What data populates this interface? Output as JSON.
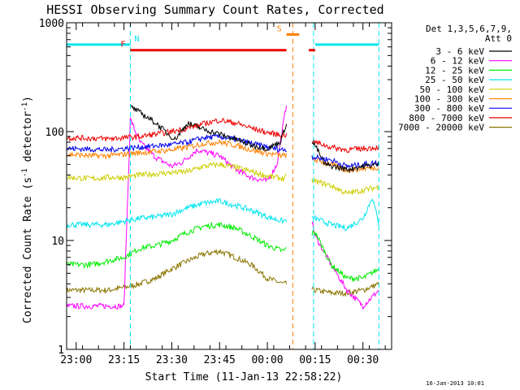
{
  "chart_data": {
    "type": "line",
    "title": "HESSI Observing Summary Count Rates, Corrected",
    "ylabel": "Corrected Count Rate (s",
    "ylabel_sup": "-1",
    "ylabel_tail": " detector",
    "ylabel_end": ")",
    "xlabel": "Start Time (11-Jan-13 22:58:22)",
    "footer_date": "16-Jan-2013 10:01",
    "y_scale": "log",
    "ylim": [
      1,
      1000
    ],
    "y_ticks": [
      {
        "value": 1,
        "label": "1"
      },
      {
        "value": 10,
        "label": "10"
      },
      {
        "value": 100,
        "label": "100"
      },
      {
        "value": 1000,
        "label": "1000"
      }
    ],
    "x_unit": "minutes after 23:00",
    "xlim": [
      -3,
      99
    ],
    "x_ticks": [
      {
        "value": 0,
        "label": "23:00"
      },
      {
        "value": 15,
        "label": "23:15"
      },
      {
        "value": 30,
        "label": "23:30"
      },
      {
        "value": 45,
        "label": "23:45"
      },
      {
        "value": 60,
        "label": "00:00"
      },
      {
        "value": 75,
        "label": "00:15"
      },
      {
        "value": 90,
        "label": "00:30"
      }
    ],
    "legend": {
      "position": "right",
      "header1": "Det 1,3,5,6,7,9,",
      "header2": "Att 0"
    },
    "flags": [
      {
        "label": "N",
        "color": "#00e5ee",
        "segments": [
          [
            -3,
            17
          ],
          [
            75,
            95
          ]
        ],
        "level": 630
      },
      {
        "label": "F",
        "color": "#ee0000",
        "segments": [
          [
            17,
            66
          ],
          [
            73,
            75
          ]
        ],
        "level": 560
      },
      {
        "label": "S",
        "color": "#ff8000",
        "segments": [
          [
            66,
            70
          ]
        ],
        "level": 780
      }
    ],
    "vlines": [
      {
        "x": 17,
        "color": "#00e5ee"
      },
      {
        "x": 95,
        "color": "#00e5ee"
      },
      {
        "x": 68,
        "color": "#ff8000"
      },
      {
        "x": 74.5,
        "color": "#00e5ee"
      }
    ],
    "gaps": [
      [
        66,
        74
      ]
    ],
    "series": [
      {
        "name": "3 - 6 keV",
        "color": "#000000",
        "points": [
          [
            17,
            170
          ],
          [
            20,
            150
          ],
          [
            25,
            120
          ],
          [
            28,
            100
          ],
          [
            31,
            85
          ],
          [
            35,
            120
          ],
          [
            40,
            105
          ],
          [
            45,
            95
          ],
          [
            50,
            85
          ],
          [
            55,
            75
          ],
          [
            60,
            70
          ],
          [
            64,
            80
          ],
          [
            66,
            120
          ],
          [
            75,
            75
          ],
          [
            78,
            50
          ],
          [
            85,
            45
          ],
          [
            90,
            48
          ],
          [
            95,
            50
          ]
        ]
      },
      {
        "name": "6 - 12 keV",
        "color": "#ff00ff",
        "points": [
          [
            -3,
            2.5
          ],
          [
            5,
            2.5
          ],
          [
            10,
            2.5
          ],
          [
            15,
            2.5
          ],
          [
            17,
            130
          ],
          [
            20,
            80
          ],
          [
            25,
            58
          ],
          [
            30,
            48
          ],
          [
            33,
            52
          ],
          [
            38,
            68
          ],
          [
            45,
            60
          ],
          [
            50,
            45
          ],
          [
            55,
            38
          ],
          [
            60,
            35
          ],
          [
            63,
            50
          ],
          [
            66,
            180
          ],
          [
            75,
            11
          ],
          [
            80,
            6
          ],
          [
            85,
            3.5
          ],
          [
            90,
            2.5
          ],
          [
            95,
            3.5
          ]
        ]
      },
      {
        "name": "12 - 25 keV",
        "color": "#00ee00",
        "points": [
          [
            -3,
            6
          ],
          [
            5,
            6
          ],
          [
            10,
            6.5
          ],
          [
            15,
            7
          ],
          [
            20,
            8.5
          ],
          [
            25,
            9
          ],
          [
            30,
            10
          ],
          [
            35,
            12
          ],
          [
            40,
            13.5
          ],
          [
            45,
            14
          ],
          [
            50,
            13
          ],
          [
            55,
            11
          ],
          [
            60,
            9
          ],
          [
            65,
            8
          ],
          [
            67,
            9
          ],
          [
            75,
            12
          ],
          [
            80,
            6
          ],
          [
            85,
            4.5
          ],
          [
            90,
            4.5
          ],
          [
            95,
            5.5
          ]
        ]
      },
      {
        "name": "25 - 50 keV",
        "color": "#00e5ee",
        "points": [
          [
            -3,
            14
          ],
          [
            5,
            14
          ],
          [
            10,
            14
          ],
          [
            15,
            15
          ],
          [
            20,
            16
          ],
          [
            25,
            16.5
          ],
          [
            30,
            17.5
          ],
          [
            35,
            20
          ],
          [
            40,
            22
          ],
          [
            45,
            23
          ],
          [
            50,
            21
          ],
          [
            55,
            19
          ],
          [
            60,
            16.5
          ],
          [
            65,
            15
          ],
          [
            67,
            16
          ],
          [
            75,
            16
          ],
          [
            80,
            14
          ],
          [
            85,
            13
          ],
          [
            90,
            16
          ],
          [
            93,
            25
          ],
          [
            95,
            14
          ]
        ]
      },
      {
        "name": "50 - 100 keV",
        "color": "#cdcd00",
        "points": [
          [
            -3,
            38
          ],
          [
            5,
            37
          ],
          [
            10,
            38
          ],
          [
            15,
            38
          ],
          [
            20,
            40
          ],
          [
            25,
            41
          ],
          [
            30,
            42
          ],
          [
            35,
            43
          ],
          [
            40,
            48
          ],
          [
            45,
            50
          ],
          [
            50,
            47
          ],
          [
            55,
            43
          ],
          [
            60,
            39
          ],
          [
            65,
            37
          ],
          [
            67,
            40
          ],
          [
            75,
            35
          ],
          [
            80,
            32
          ],
          [
            85,
            27
          ],
          [
            90,
            29
          ],
          [
            95,
            31
          ]
        ]
      },
      {
        "name": "100 - 300 keV",
        "color": "#ff8000",
        "points": [
          [
            -3,
            62
          ],
          [
            5,
            60
          ],
          [
            10,
            60
          ],
          [
            15,
            62
          ],
          [
            20,
            64
          ],
          [
            25,
            66
          ],
          [
            30,
            68
          ],
          [
            35,
            72
          ],
          [
            40,
            78
          ],
          [
            45,
            80
          ],
          [
            50,
            75
          ],
          [
            55,
            68
          ],
          [
            60,
            63
          ],
          [
            65,
            60
          ],
          [
            67,
            62
          ],
          [
            75,
            55
          ],
          [
            80,
            50
          ],
          [
            85,
            44
          ],
          [
            90,
            46
          ],
          [
            95,
            47
          ]
        ]
      },
      {
        "name": "300 - 800 keV",
        "color": "#0000ee",
        "points": [
          [
            -3,
            70
          ],
          [
            5,
            69
          ],
          [
            10,
            68
          ],
          [
            15,
            70
          ],
          [
            20,
            72
          ],
          [
            25,
            74
          ],
          [
            30,
            76
          ],
          [
            35,
            80
          ],
          [
            40,
            88
          ],
          [
            45,
            90
          ],
          [
            50,
            85
          ],
          [
            55,
            78
          ],
          [
            60,
            72
          ],
          [
            65,
            68
          ],
          [
            67,
            70
          ],
          [
            75,
            58
          ],
          [
            80,
            55
          ],
          [
            85,
            48
          ],
          [
            90,
            50
          ],
          [
            95,
            52
          ]
        ]
      },
      {
        "name": "800 - 7000 keV",
        "color": "#ee0000",
        "points": [
          [
            -3,
            88
          ],
          [
            5,
            87
          ],
          [
            10,
            86
          ],
          [
            15,
            88
          ],
          [
            20,
            90
          ],
          [
            25,
            95
          ],
          [
            30,
            100
          ],
          [
            35,
            108
          ],
          [
            40,
            118
          ],
          [
            45,
            128
          ],
          [
            50,
            120
          ],
          [
            55,
            108
          ],
          [
            60,
            98
          ],
          [
            65,
            92
          ],
          [
            67,
            95
          ],
          [
            75,
            80
          ],
          [
            80,
            72
          ],
          [
            85,
            68
          ],
          [
            90,
            70
          ],
          [
            95,
            72
          ]
        ]
      },
      {
        "name": "7000 - 20000 keV",
        "color": "#8b7500",
        "points": [
          [
            -3,
            3.5
          ],
          [
            5,
            3.5
          ],
          [
            10,
            3.5
          ],
          [
            15,
            3.7
          ],
          [
            20,
            4
          ],
          [
            25,
            4.5
          ],
          [
            30,
            5.5
          ],
          [
            35,
            6.5
          ],
          [
            40,
            7.5
          ],
          [
            45,
            8
          ],
          [
            50,
            7
          ],
          [
            55,
            6
          ],
          [
            60,
            4.5
          ],
          [
            65,
            4
          ],
          [
            67,
            4
          ],
          [
            75,
            3.5
          ],
          [
            80,
            3.3
          ],
          [
            85,
            3.3
          ],
          [
            90,
            3.5
          ],
          [
            95,
            4
          ]
        ]
      }
    ]
  }
}
